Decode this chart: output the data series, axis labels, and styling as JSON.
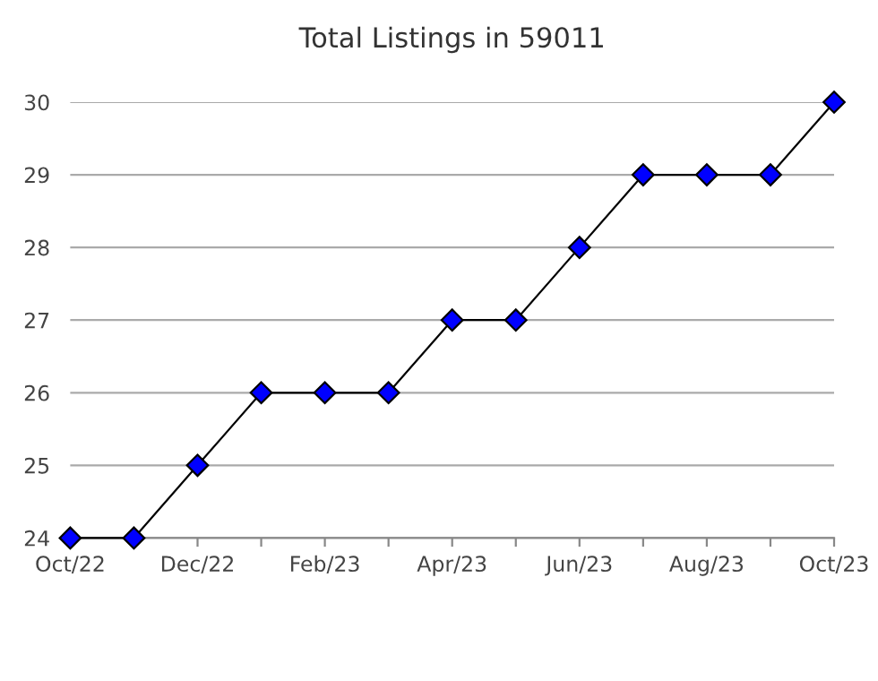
{
  "chart_data": {
    "type": "line",
    "title": "Total Listings in 59011",
    "categories": [
      "Oct/22",
      null,
      "Dec/22",
      null,
      "Feb/23",
      null,
      "Apr/23",
      null,
      "Jun/23",
      null,
      "Aug/23",
      null,
      "Oct/23"
    ],
    "series": [
      {
        "color": "#0000ff",
        "values": [
          24,
          24,
          25,
          26,
          26,
          26,
          27,
          27,
          28,
          29,
          29,
          29,
          30
        ]
      }
    ],
    "ylim": [
      24,
      30
    ],
    "yticks": [
      24,
      25,
      26,
      27,
      28,
      29,
      30
    ],
    "grid": "y",
    "marker": "diamond",
    "line_style": "solid"
  }
}
